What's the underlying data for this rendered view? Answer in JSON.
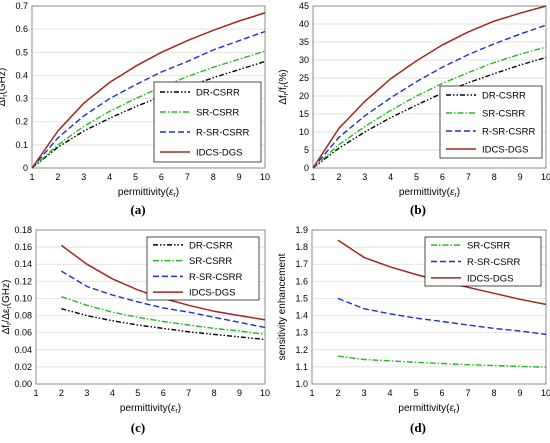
{
  "colors": {
    "DR-CSRR": "#000000",
    "SR-CSRR": "#22bb22",
    "R-SR-CSRR": "#1f2fd0",
    "IDCS-DGS": "#a0281e"
  },
  "chart_data": [
    {
      "panel": "(a)",
      "type": "line",
      "xlabel_main": "permittivity(",
      "xlabel_sym": "ε",
      "xlabel_sub": "r",
      "xlabel_end": ")",
      "ylabel_main": "Δf",
      "ylabel_sub": "r",
      "ylabel_end": "(GHz)",
      "xlim": [
        1,
        10
      ],
      "ylim": [
        0,
        0.7
      ],
      "xticks": [
        "1",
        "2",
        "3",
        "4",
        "5",
        "6",
        "7",
        "8",
        "9",
        "10"
      ],
      "yticks": [
        "0",
        "0.1",
        "0.2",
        "0.3",
        "0.4",
        "0.5",
        "0.6",
        "0.7"
      ],
      "grid": true,
      "legend": "bottom-right",
      "series": [
        {
          "name": "DR-CSRR",
          "style": "dashdotdot",
          "x": [
            1,
            2,
            3,
            4,
            5,
            6,
            7,
            8,
            9,
            10
          ],
          "y": [
            0,
            0.09,
            0.16,
            0.215,
            0.265,
            0.31,
            0.35,
            0.39,
            0.425,
            0.46
          ]
        },
        {
          "name": "SR-CSRR",
          "style": "dashdot",
          "x": [
            1,
            2,
            3,
            4,
            5,
            6,
            7,
            8,
            9,
            10
          ],
          "y": [
            0,
            0.1,
            0.18,
            0.245,
            0.3,
            0.35,
            0.395,
            0.435,
            0.47,
            0.505
          ]
        },
        {
          "name": "R-SR-CSRR",
          "style": "dash",
          "x": [
            1,
            2,
            3,
            4,
            5,
            6,
            7,
            8,
            9,
            10
          ],
          "y": [
            0,
            0.13,
            0.225,
            0.3,
            0.36,
            0.415,
            0.46,
            0.51,
            0.55,
            0.59
          ]
        },
        {
          "name": "IDCS-DGS",
          "style": "solid",
          "x": [
            1,
            2,
            3,
            4,
            5,
            6,
            7,
            8,
            9,
            10
          ],
          "y": [
            0,
            0.16,
            0.28,
            0.37,
            0.44,
            0.5,
            0.55,
            0.595,
            0.635,
            0.67
          ]
        }
      ]
    },
    {
      "panel": "(b)",
      "type": "line",
      "xlabel_main": "permittivity(",
      "xlabel_sym": "ε",
      "xlabel_sub": "r",
      "xlabel_end": ")",
      "ylabel_main": "Δf",
      "ylabel_sub": "r",
      "ylabel_mid": "/f",
      "ylabel_sub2": "r",
      "ylabel_end": "(%)",
      "xlim": [
        1,
        10
      ],
      "ylim": [
        0,
        45
      ],
      "xticks": [
        "1",
        "2",
        "3",
        "4",
        "5",
        "6",
        "7",
        "8",
        "9",
        "10"
      ],
      "yticks": [
        "0",
        "5",
        "10",
        "15",
        "20",
        "25",
        "30",
        "35",
        "40",
        "45"
      ],
      "grid": true,
      "legend": "bottom-right",
      "series": [
        {
          "name": "DR-CSRR",
          "style": "dashdotdot",
          "x": [
            1,
            2,
            3,
            4,
            5,
            6,
            7,
            8,
            9,
            10
          ],
          "y": [
            0,
            5.5,
            10,
            14,
            17.5,
            20.8,
            23.7,
            26.2,
            28.6,
            30.7
          ]
        },
        {
          "name": "SR-CSRR",
          "style": "dashdot",
          "x": [
            1,
            2,
            3,
            4,
            5,
            6,
            7,
            8,
            9,
            10
          ],
          "y": [
            0,
            6.5,
            11.5,
            16,
            20,
            23.5,
            26.5,
            29.3,
            31.6,
            33.6
          ]
        },
        {
          "name": "R-SR-CSRR",
          "style": "dash",
          "x": [
            1,
            2,
            3,
            4,
            5,
            6,
            7,
            8,
            9,
            10
          ],
          "y": [
            0,
            8.5,
            14.5,
            19.5,
            24,
            28,
            31.5,
            34.5,
            37.2,
            39.7
          ]
        },
        {
          "name": "IDCS-DGS",
          "style": "solid",
          "x": [
            1,
            2,
            3,
            4,
            5,
            6,
            7,
            8,
            9,
            10
          ],
          "y": [
            0,
            11,
            18.5,
            24.8,
            29.8,
            34.2,
            37.8,
            40.8,
            43,
            45
          ]
        }
      ]
    },
    {
      "panel": "(c)",
      "type": "line",
      "xlabel_main": "permittivity(",
      "xlabel_sym": "ε",
      "xlabel_sub": "r",
      "xlabel_end": ")",
      "ylabel_main": "Δf",
      "ylabel_sub": "r",
      "ylabel_mid": "/Δε",
      "ylabel_sub2": "r",
      "ylabel_end": "(GHz)",
      "xlim": [
        1,
        10
      ],
      "ylim": [
        0,
        0.18
      ],
      "xticks": [
        "1",
        "2",
        "3",
        "4",
        "5",
        "6",
        "7",
        "8",
        "9",
        "10"
      ],
      "yticks": [
        "0.00",
        "0.02",
        "0.04",
        "0.06",
        "0.08",
        "0.10",
        "0.12",
        "0.14",
        "0.16",
        "0.18"
      ],
      "grid": true,
      "legend": "top-right",
      "series": [
        {
          "name": "DR-CSRR",
          "style": "dashdotdot",
          "x": [
            2,
            3,
            4,
            5,
            6,
            7,
            8,
            9,
            10
          ],
          "y": [
            0.088,
            0.08,
            0.074,
            0.069,
            0.065,
            0.061,
            0.058,
            0.055,
            0.052
          ]
        },
        {
          "name": "SR-CSRR",
          "style": "dashdot",
          "x": [
            2,
            3,
            4,
            5,
            6,
            7,
            8,
            9,
            10
          ],
          "y": [
            0.102,
            0.092,
            0.084,
            0.078,
            0.073,
            0.069,
            0.065,
            0.062,
            0.058
          ]
        },
        {
          "name": "R-SR-CSRR",
          "style": "dash",
          "x": [
            2,
            3,
            4,
            5,
            6,
            7,
            8,
            9,
            10
          ],
          "y": [
            0.132,
            0.114,
            0.104,
            0.096,
            0.089,
            0.084,
            0.078,
            0.072,
            0.066
          ]
        },
        {
          "name": "IDCS-DGS",
          "style": "solid",
          "x": [
            2,
            3,
            4,
            5,
            6,
            7,
            8,
            9,
            10
          ],
          "y": [
            0.162,
            0.14,
            0.123,
            0.11,
            0.1,
            0.092,
            0.085,
            0.08,
            0.075
          ]
        }
      ]
    },
    {
      "panel": "(d)",
      "type": "line",
      "xlabel_main": "permittivity(",
      "xlabel_sym": "ε",
      "xlabel_sub": "r",
      "xlabel_end": ")",
      "ylabel_main": "sensitivity enhancement",
      "xlim": [
        1,
        10
      ],
      "ylim": [
        1,
        1.9
      ],
      "xticks": [
        "1",
        "2",
        "3",
        "4",
        "5",
        "6",
        "7",
        "8",
        "9",
        "10"
      ],
      "yticks": [
        "1.0",
        "1.1",
        "1.2",
        "1.3",
        "1.4",
        "1.5",
        "1.6",
        "1.7",
        "1.8",
        "1.9"
      ],
      "grid": true,
      "legend": "top-right",
      "series": [
        {
          "name": "SR-CSRR",
          "style": "dashdot",
          "x": [
            2,
            3,
            4,
            5,
            6,
            7,
            8,
            9,
            10
          ],
          "y": [
            1.163,
            1.143,
            1.135,
            1.127,
            1.12,
            1.113,
            1.108,
            1.103,
            1.098
          ]
        },
        {
          "name": "R-SR-CSRR",
          "style": "dash",
          "x": [
            2,
            3,
            4,
            5,
            6,
            7,
            8,
            9,
            10
          ],
          "y": [
            1.5,
            1.44,
            1.41,
            1.385,
            1.365,
            1.345,
            1.325,
            1.31,
            1.29
          ]
        },
        {
          "name": "IDCS-DGS",
          "style": "solid",
          "x": [
            2,
            3,
            4,
            5,
            6,
            7,
            8,
            9,
            10
          ],
          "y": [
            1.84,
            1.74,
            1.685,
            1.64,
            1.6,
            1.565,
            1.53,
            1.495,
            1.465
          ]
        }
      ]
    }
  ]
}
